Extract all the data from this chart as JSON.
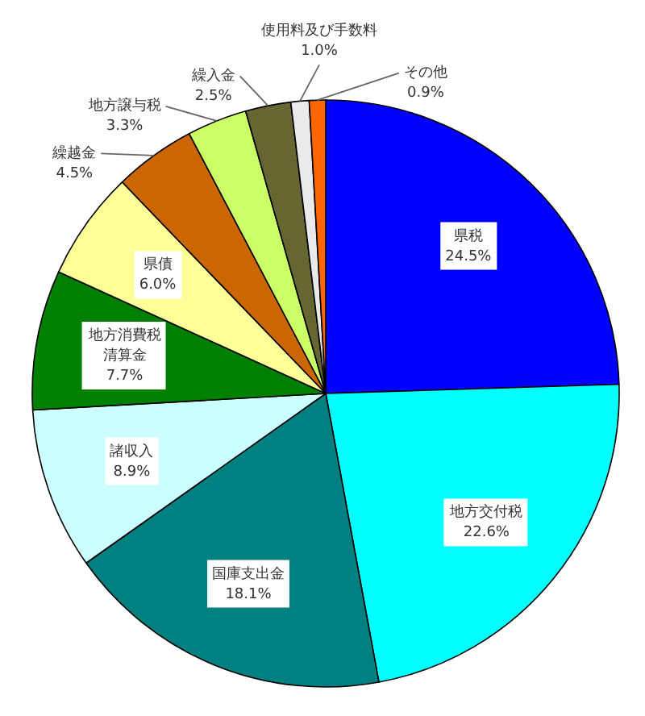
{
  "chart_data": {
    "type": "pie",
    "categories": [
      "県税",
      "地方交付税",
      "国庫支出金",
      "諸収入",
      "地方消費税清算金",
      "県債",
      "繰越金",
      "地方譲与税",
      "繰入金",
      "使用料及び手数料",
      "その他"
    ],
    "values": [
      24.5,
      22.6,
      18.1,
      8.9,
      7.7,
      6.0,
      4.5,
      3.3,
      2.5,
      1.0,
      0.9
    ],
    "colors": [
      "#0000ff",
      "#00ffff",
      "#008080",
      "#ccffff",
      "#008000",
      "#ffff99",
      "#cc6600",
      "#ccff66",
      "#666633",
      "#eaeaea",
      "#ff6600"
    ],
    "value_labels": [
      "24.5%",
      "22.6%",
      "18.1%",
      "8.9%",
      "7.7%",
      "6.0%",
      "4.5%",
      "3.3%",
      "2.5%",
      "1.0%",
      "0.9%"
    ]
  }
}
